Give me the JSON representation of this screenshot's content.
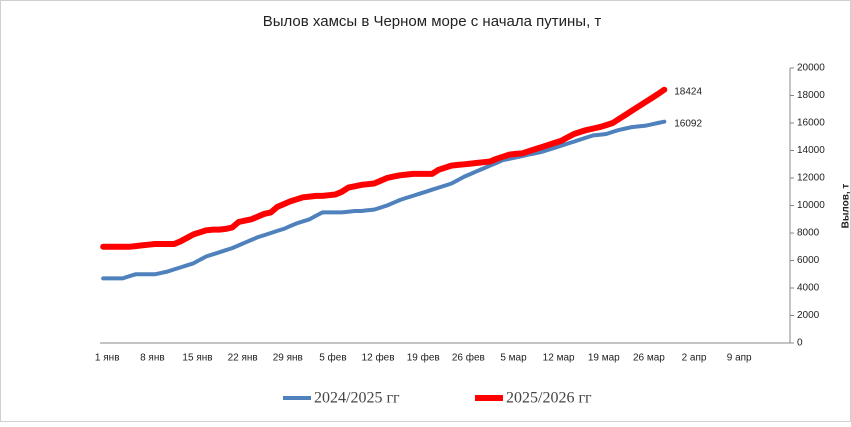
{
  "chart_data": {
    "type": "line",
    "title": "Вылов хамсы в Черном море с начала путины, т",
    "y_axis_label": "Вылов, т",
    "categories": [
      "1 янв",
      null,
      null,
      null,
      null,
      null,
      null,
      "8 янв",
      null,
      null,
      null,
      null,
      null,
      null,
      "15 янв",
      null,
      null,
      null,
      null,
      null,
      null,
      "22 янв",
      null,
      null,
      null,
      null,
      null,
      null,
      "29 янв",
      null,
      null,
      null,
      null,
      null,
      null,
      "5 фев",
      null,
      null,
      null,
      null,
      null,
      null,
      "12 фев",
      null,
      null,
      null,
      null,
      null,
      null,
      "19 фев",
      null,
      null,
      null,
      null,
      null,
      null,
      "26 фев",
      null,
      null,
      null,
      null,
      null,
      null,
      "5 мар",
      null,
      null,
      null,
      null,
      null,
      null,
      "12 мар",
      null,
      null,
      null,
      null,
      null,
      null,
      "19 мар",
      null,
      null,
      null,
      null,
      null,
      null,
      "26 мар",
      null,
      null,
      null,
      null,
      null,
      null,
      "2 апр",
      null,
      null,
      null,
      null,
      null,
      null,
      "9 апр",
      null,
      null,
      null,
      null,
      null,
      null,
      null,
      null
    ],
    "series": [
      {
        "name": "2024/2025 гг",
        "color": "#4f81bd",
        "width": 4,
        "values": [
          4700,
          4700,
          4700,
          4700,
          4850,
          5000,
          5000,
          5000,
          5000,
          5100,
          5200,
          5350,
          5500,
          5650,
          5800,
          6050,
          6300,
          6450,
          6600,
          6750,
          6900,
          7100,
          7300,
          7500,
          7700,
          7850,
          8000,
          8150,
          8300,
          8500,
          8700,
          8850,
          9000,
          9250,
          9500,
          9500,
          9500,
          9500,
          9550,
          9600,
          9600,
          9650,
          9700,
          9850,
          10000,
          10200,
          10400,
          10550,
          10700,
          10850,
          11000,
          11150,
          11300,
          11450,
          11600,
          11850,
          12100,
          12300,
          12500,
          12700,
          12900,
          13100,
          13300,
          13400,
          13500,
          13600,
          13700,
          13800,
          13900,
          14050,
          14200,
          14350,
          14500,
          14650,
          14800,
          14950,
          15100,
          15150,
          15200,
          15350,
          15500,
          15600,
          15700,
          15750,
          15800,
          15900,
          16000,
          16092,
          null,
          null,
          null,
          null,
          null,
          null,
          null,
          null,
          null,
          null,
          null,
          null,
          null,
          null,
          null,
          null,
          null,
          null,
          null
        ]
      },
      {
        "name": "2025/2026 гг",
        "color": "#ff0000",
        "width": 6,
        "values": [
          7000,
          7000,
          7000,
          7000,
          7000,
          7050,
          7100,
          7150,
          7200,
          7200,
          7200,
          7200,
          7400,
          7650,
          7900,
          8050,
          8200,
          8250,
          8250,
          8300,
          8400,
          8800,
          8900,
          9000,
          9200,
          9400,
          9500,
          9900,
          10100,
          10300,
          10450,
          10600,
          10650,
          10700,
          10700,
          10750,
          10800,
          11000,
          11300,
          11400,
          11500,
          11550,
          11600,
          11800,
          12000,
          12100,
          12200,
          12250,
          12300,
          12300,
          12300,
          12300,
          12600,
          12750,
          12900,
          12950,
          13000,
          13050,
          13100,
          13150,
          13200,
          13400,
          13550,
          13700,
          13750,
          13800,
          13950,
          14100,
          14250,
          14400,
          14550,
          14700,
          14950,
          15200,
          15350,
          15500,
          15600,
          15700,
          15850,
          16000,
          16300,
          16600,
          16900,
          17200,
          17500,
          17800,
          18100,
          18424,
          null,
          null,
          null,
          null,
          null,
          null,
          null,
          null,
          null,
          null,
          null,
          null,
          null,
          null,
          null,
          null,
          null,
          null,
          null
        ]
      }
    ],
    "ylim": [
      0,
      20000
    ],
    "yticks": [
      0,
      2000,
      4000,
      6000,
      8000,
      10000,
      12000,
      14000,
      16000,
      18000,
      20000
    ],
    "y_axis_side": "right",
    "grid": false,
    "legend": "bottom"
  }
}
